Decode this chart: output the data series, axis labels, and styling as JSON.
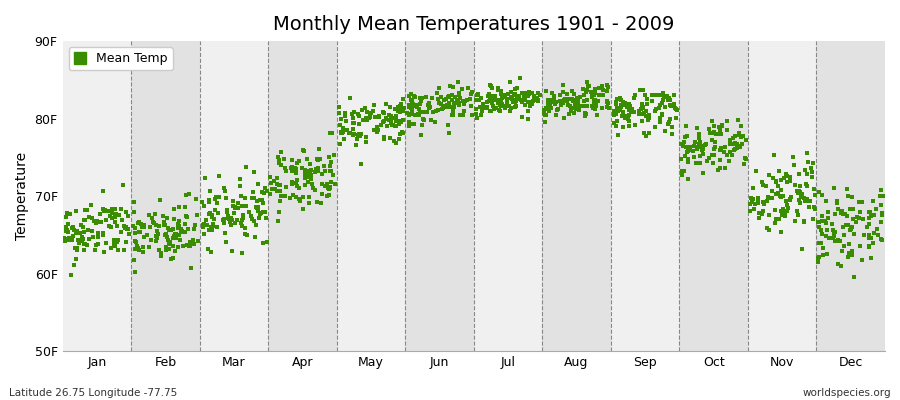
{
  "title": "Monthly Mean Temperatures 1901 - 2009",
  "ylabel": "Temperature",
  "xlabel_bottom_left": "Latitude 26.75 Longitude -77.75",
  "xlabel_bottom_right": "worldspecies.org",
  "legend_label": "Mean Temp",
  "dot_color": "#3a8c00",
  "bg_color_light": "#f0f0f0",
  "bg_color_dark": "#e2e2e2",
  "ylim": [
    50,
    90
  ],
  "yticks": [
    50,
    60,
    70,
    80,
    90
  ],
  "ytick_labels": [
    "50F",
    "60F",
    "70F",
    "80F",
    "90F"
  ],
  "months": [
    "Jan",
    "Feb",
    "Mar",
    "Apr",
    "May",
    "Jun",
    "Jul",
    "Aug",
    "Sep",
    "Oct",
    "Nov",
    "Dec"
  ],
  "month_means": [
    65.5,
    65.0,
    68.0,
    72.5,
    79.5,
    81.5,
    82.5,
    82.0,
    81.0,
    76.5,
    70.0,
    66.0
  ],
  "month_stds": [
    2.0,
    2.2,
    2.0,
    2.0,
    1.5,
    1.2,
    1.0,
    1.0,
    1.5,
    1.8,
    2.5,
    2.5
  ],
  "n_years": 109,
  "seed": 42,
  "figsize": [
    9.0,
    4.0
  ],
  "dpi": 100
}
